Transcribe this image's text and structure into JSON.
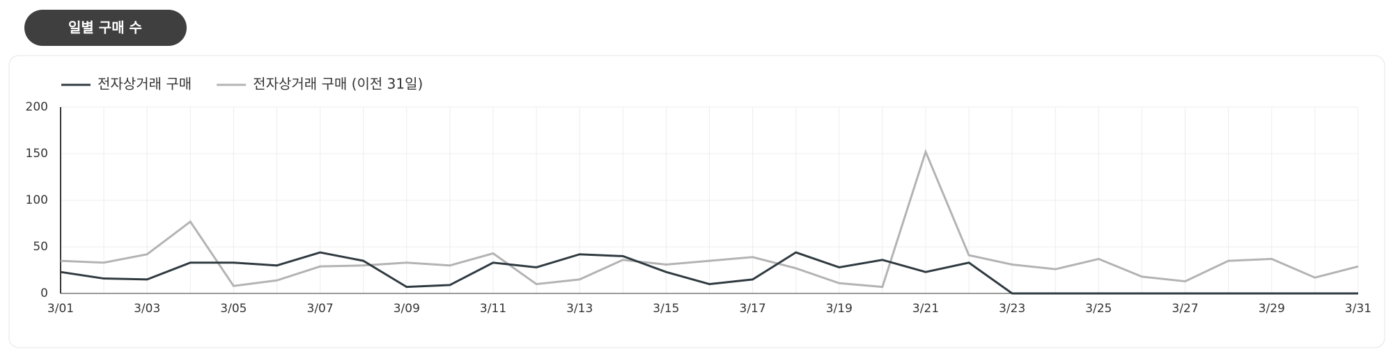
{
  "chart_data": {
    "type": "line",
    "title": "일별 구매 수",
    "categories": [
      "3/01",
      null,
      "3/03",
      null,
      "3/05",
      null,
      "3/07",
      null,
      "3/09",
      null,
      "3/11",
      null,
      "3/13",
      null,
      "3/15",
      null,
      "3/17",
      null,
      "3/19",
      null,
      "3/21",
      null,
      "3/23",
      null,
      "3/25",
      null,
      "3/27",
      null,
      "3/29",
      null,
      "3/31"
    ],
    "series": [
      {
        "name": "전자상거래 구매",
        "color": "#2f3a40",
        "values": [
          23,
          16,
          15,
          33,
          33,
          30,
          44,
          35,
          7,
          9,
          33,
          28,
          42,
          40,
          23,
          10,
          15,
          44,
          28,
          36,
          23,
          33,
          0,
          0,
          0,
          0,
          0,
          0,
          0,
          0,
          0
        ]
      },
      {
        "name": "전자상거래 구매 (이전 31일)",
        "color": "#b3b3b3",
        "values": [
          35,
          33,
          42,
          77,
          8,
          14,
          29,
          30,
          33,
          30,
          43,
          10,
          15,
          36,
          31,
          35,
          39,
          27,
          11,
          7,
          152,
          41,
          31,
          26,
          37,
          18,
          13,
          35,
          37,
          17,
          29
        ]
      }
    ],
    "ylim": [
      0,
      200
    ],
    "yticks": [
      0,
      50,
      100,
      150,
      200
    ],
    "grid": true
  }
}
